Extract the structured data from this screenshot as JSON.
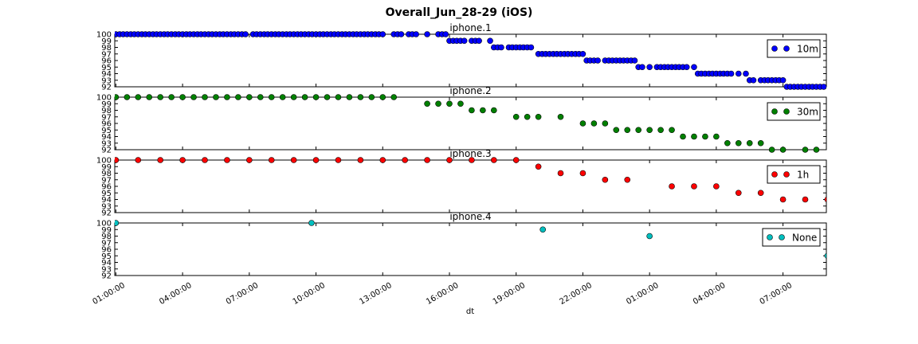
{
  "chart_data": {
    "type": "scatter",
    "title": "Overall_Jun_28-29 (iOS)",
    "xlabel": "dt",
    "x_tick_labels": [
      "01:00:00",
      "04:00:00",
      "07:00:00",
      "10:00:00",
      "13:00:00",
      "16:00:00",
      "19:00:00",
      "22:00:00",
      "01:00:00",
      "04:00:00",
      "07:00:00"
    ],
    "x_tick_hours": [
      1,
      4,
      7,
      10,
      13,
      16,
      19,
      22,
      25,
      28,
      31
    ],
    "xlim_hours": [
      0.95,
      32.95
    ],
    "ylim": [
      92,
      100
    ],
    "y_ticks": [
      92,
      93,
      94,
      95,
      96,
      97,
      98,
      99,
      100
    ],
    "panels": [
      {
        "title": "iphone.1",
        "legend": "10m",
        "color": "#0000ff",
        "x_hours": [
          1.0,
          1.17,
          1.33,
          1.5,
          1.67,
          1.83,
          2.0,
          2.17,
          2.33,
          2.5,
          2.67,
          2.83,
          3.0,
          3.17,
          3.33,
          3.5,
          3.67,
          3.83,
          4.0,
          4.17,
          4.33,
          4.5,
          4.67,
          4.83,
          5.0,
          5.17,
          5.33,
          5.5,
          5.67,
          5.83,
          6.0,
          6.17,
          6.33,
          6.5,
          6.67,
          6.83,
          7.17,
          7.33,
          7.5,
          7.67,
          7.83,
          8.0,
          8.17,
          8.33,
          8.5,
          8.67,
          8.83,
          9.0,
          9.17,
          9.33,
          9.5,
          9.67,
          9.83,
          10.0,
          10.17,
          10.33,
          10.5,
          10.67,
          10.83,
          11.0,
          11.17,
          11.33,
          11.5,
          11.67,
          11.83,
          12.0,
          12.17,
          12.33,
          12.5,
          12.67,
          12.83,
          13.0,
          13.5,
          13.67,
          13.83,
          14.17,
          14.33,
          14.5,
          15.0,
          15.5,
          15.67,
          15.83,
          16.0,
          16.17,
          16.33,
          16.5,
          16.67,
          17.0,
          17.17,
          17.33,
          17.83,
          18.0,
          18.17,
          18.33,
          18.67,
          18.83,
          19.0,
          19.17,
          19.33,
          19.5,
          19.67,
          20.0,
          20.17,
          20.33,
          20.5,
          20.67,
          20.83,
          21.0,
          21.17,
          21.33,
          21.5,
          21.67,
          21.83,
          22.0,
          22.17,
          22.33,
          22.5,
          22.67,
          23.0,
          23.17,
          23.33,
          23.5,
          23.67,
          23.83,
          24.0,
          24.17,
          24.33,
          24.5,
          24.67,
          25.0,
          25.33,
          25.5,
          25.67,
          25.83,
          26.0,
          26.17,
          26.33,
          26.5,
          26.67,
          27.0,
          27.17,
          27.33,
          27.5,
          27.67,
          27.83,
          28.0,
          28.17,
          28.33,
          28.5,
          28.67,
          29.0,
          29.33,
          29.5,
          29.67,
          30.0,
          30.17,
          30.33,
          30.5,
          30.67,
          30.83,
          31.0,
          31.17,
          31.33,
          31.5,
          31.67,
          31.83,
          32.0,
          32.17,
          32.33,
          32.5,
          32.67,
          32.83
        ],
        "y": [
          100,
          100,
          100,
          100,
          100,
          100,
          100,
          100,
          100,
          100,
          100,
          100,
          100,
          100,
          100,
          100,
          100,
          100,
          100,
          100,
          100,
          100,
          100,
          100,
          100,
          100,
          100,
          100,
          100,
          100,
          100,
          100,
          100,
          100,
          100,
          100,
          100,
          100,
          100,
          100,
          100,
          100,
          100,
          100,
          100,
          100,
          100,
          100,
          100,
          100,
          100,
          100,
          100,
          100,
          100,
          100,
          100,
          100,
          100,
          100,
          100,
          100,
          100,
          100,
          100,
          100,
          100,
          100,
          100,
          100,
          100,
          100,
          100,
          100,
          100,
          100,
          100,
          100,
          100,
          100,
          100,
          100,
          99,
          99,
          99,
          99,
          99,
          99,
          99,
          99,
          99,
          98,
          98,
          98,
          98,
          98,
          98,
          98,
          98,
          98,
          98,
          97,
          97,
          97,
          97,
          97,
          97,
          97,
          97,
          97,
          97,
          97,
          97,
          97,
          96,
          96,
          96,
          96,
          96,
          96,
          96,
          96,
          96,
          96,
          96,
          96,
          96,
          95,
          95,
          95,
          95,
          95,
          95,
          95,
          95,
          95,
          95,
          95,
          95,
          95,
          94,
          94,
          94,
          94,
          94,
          94,
          94,
          94,
          94,
          94,
          94,
          94,
          93,
          93,
          93,
          93,
          93,
          93,
          93,
          93,
          93,
          92,
          92,
          92,
          92,
          92,
          92,
          92,
          92,
          92,
          92,
          92
        ]
      },
      {
        "title": "iphone.2",
        "legend": "30m",
        "color": "#008000",
        "x_hours": [
          1.0,
          1.5,
          2.0,
          2.5,
          3.0,
          3.5,
          4.0,
          4.5,
          5.0,
          5.5,
          6.0,
          6.5,
          7.0,
          7.5,
          8.0,
          8.5,
          9.0,
          9.5,
          10.0,
          10.5,
          11.0,
          11.5,
          12.0,
          12.5,
          13.0,
          13.5,
          15.0,
          15.5,
          16.0,
          16.5,
          17.0,
          17.5,
          18.0,
          19.0,
          19.5,
          20.0,
          21.0,
          22.0,
          22.5,
          23.0,
          23.5,
          24.0,
          24.5,
          25.0,
          25.5,
          26.0,
          26.5,
          27.0,
          27.5,
          28.0,
          28.5,
          29.0,
          29.5,
          30.0,
          30.5,
          31.0,
          32.0,
          32.5
        ],
        "y": [
          100,
          100,
          100,
          100,
          100,
          100,
          100,
          100,
          100,
          100,
          100,
          100,
          100,
          100,
          100,
          100,
          100,
          100,
          100,
          100,
          100,
          100,
          100,
          100,
          100,
          100,
          99,
          99,
          99,
          99,
          98,
          98,
          98,
          97,
          97,
          97,
          97,
          96,
          96,
          96,
          95,
          95,
          95,
          95,
          95,
          95,
          94,
          94,
          94,
          94,
          93,
          93,
          93,
          93,
          92,
          92,
          92,
          92
        ]
      },
      {
        "title": "iphone.3",
        "legend": "1h",
        "color": "#ff0000",
        "x_hours": [
          1.0,
          2.0,
          3.0,
          4.0,
          5.0,
          6.0,
          7.0,
          8.0,
          9.0,
          10.0,
          11.0,
          12.0,
          13.0,
          14.0,
          15.0,
          16.0,
          17.0,
          18.0,
          19.0,
          20.0,
          21.0,
          22.0,
          23.0,
          24.0,
          26.0,
          27.0,
          28.0,
          29.0,
          30.0,
          31.0,
          32.0,
          33.0
        ],
        "y": [
          100,
          100,
          100,
          100,
          100,
          100,
          100,
          100,
          100,
          100,
          100,
          100,
          100,
          100,
          100,
          100,
          100,
          100,
          100,
          99,
          98,
          98,
          97,
          97,
          96,
          96,
          96,
          95,
          95,
          94,
          94,
          94
        ]
      },
      {
        "title": "iphone.4",
        "legend": "None",
        "color": "#00bfbf",
        "x_hours": [
          1.0,
          9.8,
          20.2,
          25.0,
          33.0
        ],
        "y": [
          100,
          100,
          99,
          98,
          95
        ]
      }
    ]
  }
}
